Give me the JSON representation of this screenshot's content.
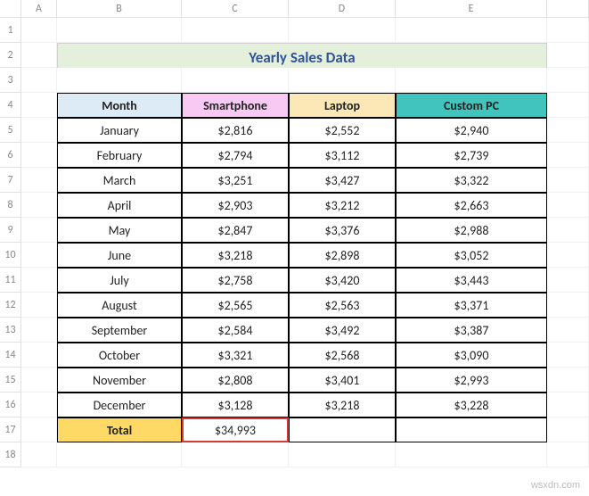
{
  "columns": [
    "A",
    "B",
    "C",
    "D",
    "E"
  ],
  "title": "Yearly Sales Data",
  "headers": {
    "month": "Month",
    "smartphone": "Smartphone",
    "laptop": "Laptop",
    "custompc": "Custom PC"
  },
  "header_colors": {
    "month": "#ddebf7",
    "smartphone": "#f8c9f2",
    "laptop": "#fce8b6",
    "custompc": "#41c4bd",
    "title_bg": "#e4efdc",
    "title_fg": "#305496",
    "total_bg": "#ffd966",
    "highlight_border": "#d63a2f"
  },
  "rows": [
    {
      "month": "January",
      "smartphone": "$2,816",
      "laptop": "$2,552",
      "custompc": "$2,940"
    },
    {
      "month": "February",
      "smartphone": "$2,794",
      "laptop": "$3,112",
      "custompc": "$2,739"
    },
    {
      "month": "March",
      "smartphone": "$3,251",
      "laptop": "$3,427",
      "custompc": "$3,322"
    },
    {
      "month": "April",
      "smartphone": "$2,903",
      "laptop": "$3,212",
      "custompc": "$2,663"
    },
    {
      "month": "May",
      "smartphone": "$2,847",
      "laptop": "$3,376",
      "custompc": "$2,988"
    },
    {
      "month": "June",
      "smartphone": "$3,218",
      "laptop": "$2,898",
      "custompc": "$3,052"
    },
    {
      "month": "July",
      "smartphone": "$2,758",
      "laptop": "$3,420",
      "custompc": "$3,443"
    },
    {
      "month": "August",
      "smartphone": "$2,565",
      "laptop": "$2,563",
      "custompc": "$3,371"
    },
    {
      "month": "September",
      "smartphone": "$2,584",
      "laptop": "$3,492",
      "custompc": "$3,387"
    },
    {
      "month": "October",
      "smartphone": "$3,321",
      "laptop": "$2,568",
      "custompc": "$3,090"
    },
    {
      "month": "November",
      "smartphone": "$2,808",
      "laptop": "$3,401",
      "custompc": "$2,993"
    },
    {
      "month": "December",
      "smartphone": "$3,128",
      "laptop": "$3,218",
      "custompc": "$3,228"
    }
  ],
  "total": {
    "label": "Total",
    "smartphone": "$34,993",
    "laptop": "",
    "custompc": ""
  },
  "watermark": "wsxdn.com"
}
